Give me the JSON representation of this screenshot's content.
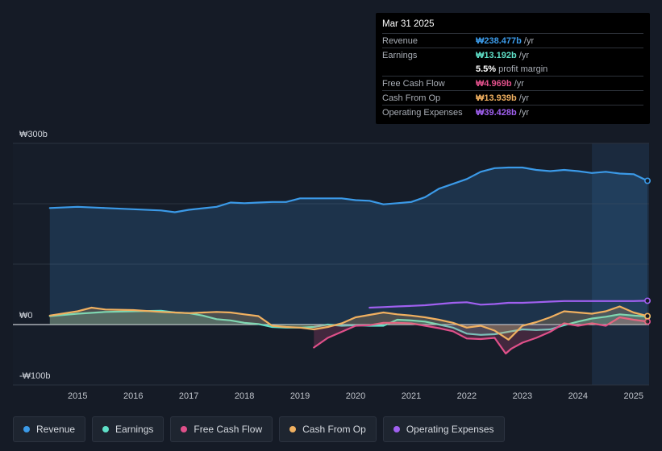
{
  "tooltip": {
    "date": "Mar 31 2025",
    "rows": [
      {
        "label": "Revenue",
        "value": "₩238.477b",
        "unit": " /yr",
        "color": "#3b9ae8"
      },
      {
        "label": "Earnings",
        "value": "₩13.192b",
        "unit": " /yr",
        "color": "#5fe0c8"
      },
      {
        "label": "",
        "value": "5.5%",
        "unit": " profit margin",
        "color": "#ffffff"
      },
      {
        "label": "Free Cash Flow",
        "value": "₩4.969b",
        "unit": " /yr",
        "color": "#e0508a"
      },
      {
        "label": "Cash From Op",
        "value": "₩13.939b",
        "unit": " /yr",
        "color": "#f0b060"
      },
      {
        "label": "Operating Expenses",
        "value": "₩39.428b",
        "unit": " /yr",
        "color": "#a060f0"
      }
    ]
  },
  "legend": [
    {
      "label": "Revenue",
      "color": "#3b9ae8"
    },
    {
      "label": "Earnings",
      "color": "#5fe0c8"
    },
    {
      "label": "Free Cash Flow",
      "color": "#e0508a"
    },
    {
      "label": "Cash From Op",
      "color": "#f0b060"
    },
    {
      "label": "Operating Expenses",
      "color": "#a060f0"
    }
  ],
  "chart_data": {
    "type": "line",
    "title": "",
    "xlabel": "",
    "ylabel": "",
    "ylim": [
      -100,
      300
    ],
    "xlim": [
      2014.3,
      2025.25
    ],
    "y_tick_labels": [
      {
        "value": 300,
        "label": "₩300b"
      },
      {
        "value": 0,
        "label": "₩0"
      },
      {
        "value": -100,
        "label": "-₩100b"
      }
    ],
    "x_ticks": [
      2015,
      2016,
      2017,
      2018,
      2019,
      2020,
      2021,
      2022,
      2023,
      2024,
      2025
    ],
    "x_tick_labels": [
      "2015",
      "2016",
      "2017",
      "2018",
      "2019",
      "2020",
      "2021",
      "2022",
      "2023",
      "2024",
      "2025"
    ],
    "highlight_from": 2024.25,
    "series": [
      {
        "name": "Revenue",
        "color": "#3b9ae8",
        "fill": true,
        "points": [
          [
            2014.5,
            193
          ],
          [
            2015.0,
            195
          ],
          [
            2015.5,
            193
          ],
          [
            2016.0,
            191
          ],
          [
            2016.5,
            189
          ],
          [
            2016.75,
            186
          ],
          [
            2017.0,
            190
          ],
          [
            2017.5,
            195
          ],
          [
            2017.75,
            202
          ],
          [
            2018.0,
            201
          ],
          [
            2018.25,
            202
          ],
          [
            2018.5,
            203
          ],
          [
            2018.75,
            203
          ],
          [
            2019.0,
            209
          ],
          [
            2019.25,
            209
          ],
          [
            2019.5,
            209
          ],
          [
            2019.75,
            209
          ],
          [
            2020.0,
            206
          ],
          [
            2020.25,
            205
          ],
          [
            2020.5,
            199
          ],
          [
            2020.75,
            201
          ],
          [
            2021.0,
            203
          ],
          [
            2021.25,
            211
          ],
          [
            2021.5,
            225
          ],
          [
            2021.75,
            233
          ],
          [
            2022.0,
            241
          ],
          [
            2022.25,
            253
          ],
          [
            2022.5,
            259
          ],
          [
            2022.75,
            260
          ],
          [
            2023.0,
            260
          ],
          [
            2023.25,
            256
          ],
          [
            2023.5,
            254
          ],
          [
            2023.75,
            256
          ],
          [
            2024.0,
            254
          ],
          [
            2024.25,
            251
          ],
          [
            2024.5,
            253
          ],
          [
            2024.75,
            250
          ],
          [
            2025.0,
            249
          ],
          [
            2025.25,
            238
          ]
        ]
      },
      {
        "name": "Earnings",
        "color": "#5fe0c8",
        "fill": true,
        "points": [
          [
            2014.5,
            14
          ],
          [
            2015.0,
            18
          ],
          [
            2015.5,
            21
          ],
          [
            2016.0,
            22
          ],
          [
            2016.5,
            23
          ],
          [
            2016.75,
            20
          ],
          [
            2017.0,
            19
          ],
          [
            2017.25,
            15
          ],
          [
            2017.5,
            9
          ],
          [
            2017.75,
            7
          ],
          [
            2018.0,
            3
          ],
          [
            2018.25,
            1
          ],
          [
            2018.5,
            -4
          ],
          [
            2018.75,
            -5
          ],
          [
            2019.0,
            -5
          ],
          [
            2019.25,
            -4
          ],
          [
            2019.5,
            0
          ],
          [
            2019.75,
            -2
          ],
          [
            2020.0,
            -1
          ],
          [
            2020.25,
            -2
          ],
          [
            2020.5,
            -2
          ],
          [
            2020.75,
            8
          ],
          [
            2021.0,
            7
          ],
          [
            2021.25,
            5
          ],
          [
            2021.5,
            0
          ],
          [
            2021.75,
            -5
          ],
          [
            2022.0,
            -15
          ],
          [
            2022.25,
            -17
          ],
          [
            2022.5,
            -16
          ],
          [
            2022.75,
            -12
          ],
          [
            2023.0,
            -8
          ],
          [
            2023.25,
            -9
          ],
          [
            2023.5,
            -8
          ],
          [
            2023.75,
            -1
          ],
          [
            2024.0,
            5
          ],
          [
            2024.25,
            10
          ],
          [
            2024.5,
            13
          ],
          [
            2024.75,
            17
          ],
          [
            2025.0,
            15
          ],
          [
            2025.25,
            13.2
          ]
        ]
      },
      {
        "name": "Free Cash Flow",
        "color": "#e0508a",
        "fill": true,
        "points": [
          [
            2019.25,
            -38
          ],
          [
            2019.5,
            -22
          ],
          [
            2019.75,
            -12
          ],
          [
            2020.0,
            -2
          ],
          [
            2020.25,
            -1
          ],
          [
            2020.5,
            3
          ],
          [
            2020.75,
            3
          ],
          [
            2021.0,
            2
          ],
          [
            2021.25,
            -2
          ],
          [
            2021.5,
            -6
          ],
          [
            2021.75,
            -11
          ],
          [
            2022.0,
            -23
          ],
          [
            2022.25,
            -24
          ],
          [
            2022.5,
            -22
          ],
          [
            2022.7,
            -48
          ],
          [
            2022.8,
            -40
          ],
          [
            2023.0,
            -30
          ],
          [
            2023.25,
            -22
          ],
          [
            2023.5,
            -12
          ],
          [
            2023.75,
            2
          ],
          [
            2024.0,
            -2
          ],
          [
            2024.25,
            2
          ],
          [
            2024.5,
            -2
          ],
          [
            2024.75,
            12
          ],
          [
            2025.0,
            8
          ],
          [
            2025.25,
            5
          ]
        ]
      },
      {
        "name": "Cash From Op",
        "color": "#f0b060",
        "fill": true,
        "points": [
          [
            2014.5,
            15
          ],
          [
            2015.0,
            22
          ],
          [
            2015.25,
            28
          ],
          [
            2015.5,
            25
          ],
          [
            2016.0,
            24
          ],
          [
            2016.5,
            21
          ],
          [
            2016.75,
            20
          ],
          [
            2017.0,
            19
          ],
          [
            2017.5,
            21
          ],
          [
            2017.75,
            20
          ],
          [
            2018.0,
            17
          ],
          [
            2018.25,
            14
          ],
          [
            2018.5,
            -2
          ],
          [
            2018.75,
            -4
          ],
          [
            2019.0,
            -5
          ],
          [
            2019.25,
            -8
          ],
          [
            2019.5,
            -4
          ],
          [
            2019.75,
            2
          ],
          [
            2020.0,
            12
          ],
          [
            2020.25,
            16
          ],
          [
            2020.5,
            20
          ],
          [
            2020.75,
            17
          ],
          [
            2021.0,
            15
          ],
          [
            2021.25,
            12
          ],
          [
            2021.5,
            8
          ],
          [
            2021.75,
            3
          ],
          [
            2022.0,
            -5
          ],
          [
            2022.25,
            -2
          ],
          [
            2022.5,
            -10
          ],
          [
            2022.75,
            -25
          ],
          [
            2023.0,
            -2
          ],
          [
            2023.25,
            4
          ],
          [
            2023.5,
            12
          ],
          [
            2023.75,
            22
          ],
          [
            2024.0,
            20
          ],
          [
            2024.25,
            18
          ],
          [
            2024.5,
            22
          ],
          [
            2024.75,
            30
          ],
          [
            2025.0,
            20
          ],
          [
            2025.25,
            14
          ]
        ]
      },
      {
        "name": "Operating Expenses",
        "color": "#a060f0",
        "fill": false,
        "points": [
          [
            2020.25,
            28
          ],
          [
            2020.5,
            29
          ],
          [
            2020.75,
            30
          ],
          [
            2021.0,
            31
          ],
          [
            2021.25,
            32
          ],
          [
            2021.5,
            34
          ],
          [
            2021.75,
            36
          ],
          [
            2022.0,
            37
          ],
          [
            2022.25,
            33
          ],
          [
            2022.5,
            34
          ],
          [
            2022.75,
            36
          ],
          [
            2023.0,
            36
          ],
          [
            2023.25,
            37
          ],
          [
            2023.5,
            38
          ],
          [
            2023.75,
            39
          ],
          [
            2024.0,
            39
          ],
          [
            2024.25,
            39
          ],
          [
            2024.5,
            39
          ],
          [
            2024.75,
            39
          ],
          [
            2025.0,
            39
          ],
          [
            2025.25,
            39.4
          ]
        ]
      }
    ]
  }
}
